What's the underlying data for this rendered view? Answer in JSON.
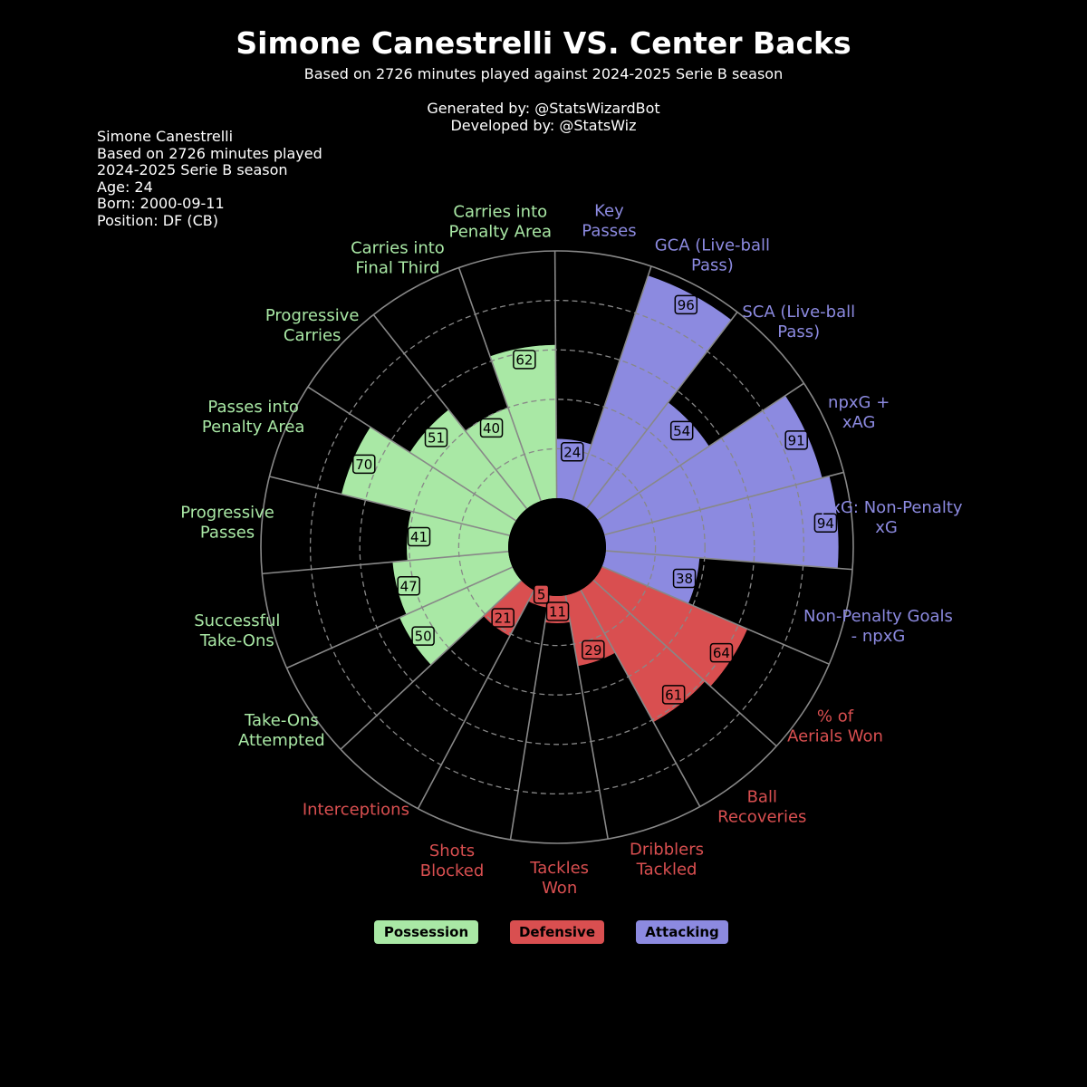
{
  "header": {
    "title": "Simone Canestrelli VS. Center Backs",
    "subtitle": "Based on 2726 minutes played against 2024-2025 Serie B season",
    "generated_by": "Generated by: @StatsWizardBot",
    "developed_by": "Developed by: @StatsWiz"
  },
  "player_info": [
    "Simone Canestrelli",
    "Based on 2726 minutes played",
    "2024-2025 Serie B season",
    "Age: 24",
    "Born: 2000-09-11",
    "Position: DF (CB)"
  ],
  "colors": {
    "possession": "#a9e8a5",
    "defensive": "#d94f50",
    "attacking": "#8c8ae0",
    "background": "#000000",
    "grid": "#888888"
  },
  "legend": [
    {
      "label": "Possession",
      "group": "possession"
    },
    {
      "label": "Defensive",
      "group": "defensive"
    },
    {
      "label": "Attacking",
      "group": "attacking"
    }
  ],
  "chart_data": {
    "type": "polar-bar",
    "rlim": [
      0,
      100
    ],
    "grid": true,
    "legend_position": "bottom",
    "categories": [
      {
        "label": "npxG: Non-Penalty xG",
        "value": 94,
        "group": "attacking"
      },
      {
        "label": "npxG + xAG",
        "value": 91,
        "group": "attacking"
      },
      {
        "label": "SCA (Live-ball Pass)",
        "value": 54,
        "group": "attacking"
      },
      {
        "label": "GCA (Live-ball Pass)",
        "value": 96,
        "group": "attacking"
      },
      {
        "label": "Key Passes",
        "value": 24,
        "group": "attacking"
      },
      {
        "label": "Carries into Penalty Area",
        "value": 62,
        "group": "possession"
      },
      {
        "label": "Carries into Final Third",
        "value": 40,
        "group": "possession"
      },
      {
        "label": "Progressive Carries",
        "value": 51,
        "group": "possession"
      },
      {
        "label": "Passes into Penalty Area",
        "value": 70,
        "group": "possession"
      },
      {
        "label": "Progressive Passes",
        "value": 41,
        "group": "possession"
      },
      {
        "label": "Successful Take-Ons",
        "value": 47,
        "group": "possession"
      },
      {
        "label": "Take-Ons Attempted",
        "value": 50,
        "group": "possession"
      },
      {
        "label": "Interceptions",
        "value": 21,
        "group": "defensive"
      },
      {
        "label": "Shots Blocked",
        "value": 5,
        "group": "defensive"
      },
      {
        "label": "Tackles Won",
        "value": 11,
        "group": "defensive"
      },
      {
        "label": "Dribblers Tackled",
        "value": 29,
        "group": "defensive"
      },
      {
        "label": "Ball Recoveries",
        "value": 61,
        "group": "defensive"
      },
      {
        "label": "% of Aerials Won",
        "value": 64,
        "group": "defensive"
      },
      {
        "label": "Non-Penalty Goals - npxG",
        "value": 38,
        "group": "attacking"
      }
    ]
  }
}
